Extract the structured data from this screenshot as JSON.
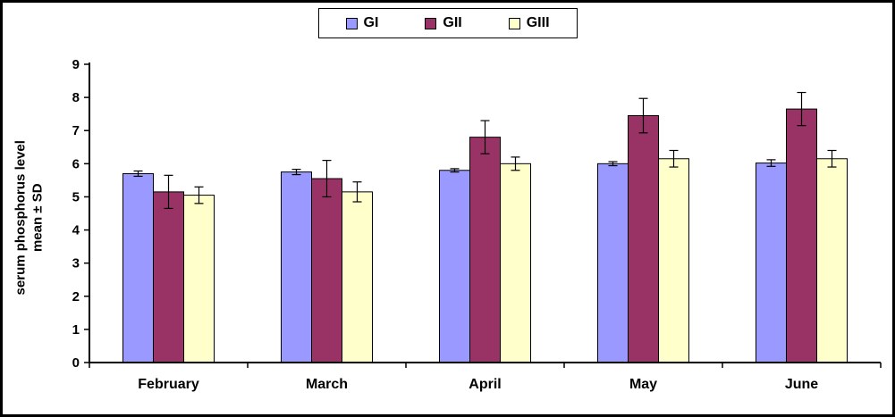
{
  "chart": {
    "ylabel_line1": "serum phosphorus level",
    "ylabel_line2": "mean ± SD"
  },
  "chart_data": {
    "type": "bar",
    "title": "",
    "xlabel": "",
    "ylabel": "serum phosphorus level mean ± SD",
    "categories": [
      "February",
      "March",
      "April",
      "May",
      "June"
    ],
    "series": [
      {
        "name": "GI",
        "color": "#9999FF",
        "values": [
          5.7,
          5.75,
          5.8,
          6.0,
          6.02
        ],
        "errors": [
          0.08,
          0.08,
          0.05,
          0.06,
          0.1
        ]
      },
      {
        "name": "GII",
        "color": "#993366",
        "values": [
          5.15,
          5.55,
          6.8,
          7.45,
          7.65
        ],
        "errors": [
          0.5,
          0.55,
          0.5,
          0.52,
          0.5
        ]
      },
      {
        "name": "GIII",
        "color": "#FFFFCC",
        "values": [
          5.05,
          5.15,
          6.0,
          6.15,
          6.15
        ],
        "errors": [
          0.25,
          0.3,
          0.2,
          0.25,
          0.25
        ]
      }
    ],
    "ylim": [
      0,
      9
    ],
    "yticks": [
      0,
      1,
      2,
      3,
      4,
      5,
      6,
      7,
      8,
      9
    ],
    "grid": false,
    "legend_position": "top-center",
    "error_bars": true
  }
}
